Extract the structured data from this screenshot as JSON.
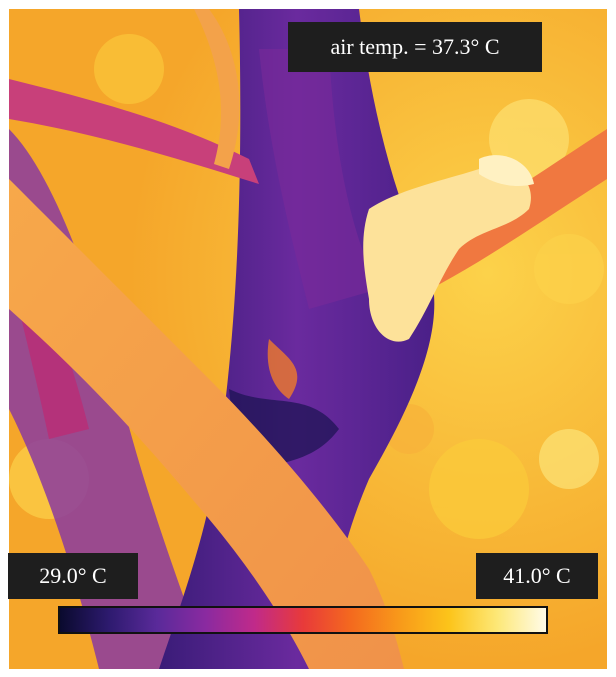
{
  "image": {
    "description_colors": {
      "background_warm": "#f6b02a",
      "hot_yellow": "#fcd24a",
      "cool_purple": "#5a2a9a",
      "magenta": "#b4327a",
      "dark_navy": "#1a1250"
    }
  },
  "labels": {
    "air_temp": "air temp. = 37.3° C",
    "scale_min": "29.0° C",
    "scale_max": "41.0° C"
  },
  "colorbar": {
    "stops": [
      "#0a0a2e",
      "#2d1a6e",
      "#5a2a9a",
      "#8a2aa0",
      "#c02a8a",
      "#e83a3a",
      "#f46a1e",
      "#f89a1a",
      "#fcc41a",
      "#fde878",
      "#fffbe8"
    ]
  }
}
